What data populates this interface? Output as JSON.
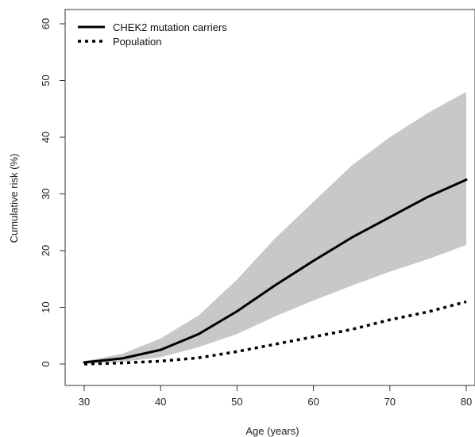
{
  "chart_data": {
    "type": "line",
    "title": "",
    "xlabel": "Age (years)",
    "ylabel": "Cumulative risk (%)",
    "xlim": [
      30,
      80
    ],
    "ylim": [
      0,
      60
    ],
    "x_ticks": [
      30,
      40,
      50,
      60,
      70,
      80
    ],
    "y_ticks": [
      0,
      10,
      20,
      30,
      40,
      50,
      60
    ],
    "grid": false,
    "legend_position": "top-left",
    "x": [
      30,
      35,
      40,
      45,
      50,
      55,
      60,
      65,
      70,
      75,
      80
    ],
    "series": [
      {
        "name": "CHEK2 mutation carriers",
        "style": "solid",
        "color": "#000000",
        "values": [
          0.3,
          1.0,
          2.5,
          5.3,
          9.3,
          13.9,
          18.2,
          22.3,
          25.9,
          29.5,
          32.5
        ]
      },
      {
        "name": "Population",
        "style": "dotted",
        "color": "#000000",
        "values": [
          0.0,
          0.2,
          0.5,
          1.1,
          2.2,
          3.5,
          4.8,
          6.1,
          7.8,
          9.2,
          11.0
        ]
      }
    ],
    "band": {
      "color": "#c8c8c8",
      "lower": [
        0.0,
        0.4,
        1.2,
        3.0,
        5.3,
        8.4,
        11.2,
        13.8,
        16.3,
        18.5,
        21.0
      ],
      "upper": [
        0.5,
        1.8,
        4.5,
        8.6,
        14.9,
        22.2,
        28.6,
        35.0,
        40.0,
        44.3,
        48.0
      ]
    }
  }
}
